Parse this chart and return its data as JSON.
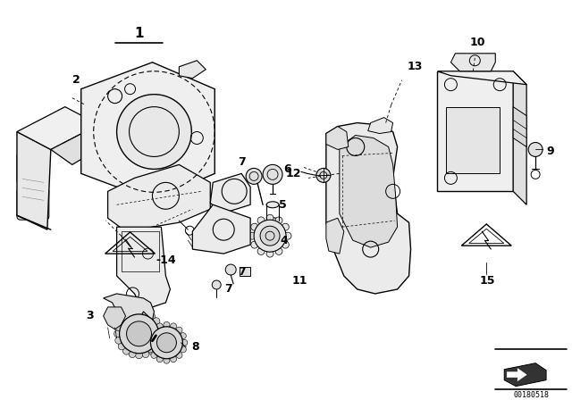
{
  "bg_color": "#ffffff",
  "fig_width": 6.4,
  "fig_height": 4.48,
  "dpi": 100,
  "watermark_text": "00180518",
  "line_color": "#000000",
  "gray_color": "#888888",
  "dark_gray": "#555555"
}
